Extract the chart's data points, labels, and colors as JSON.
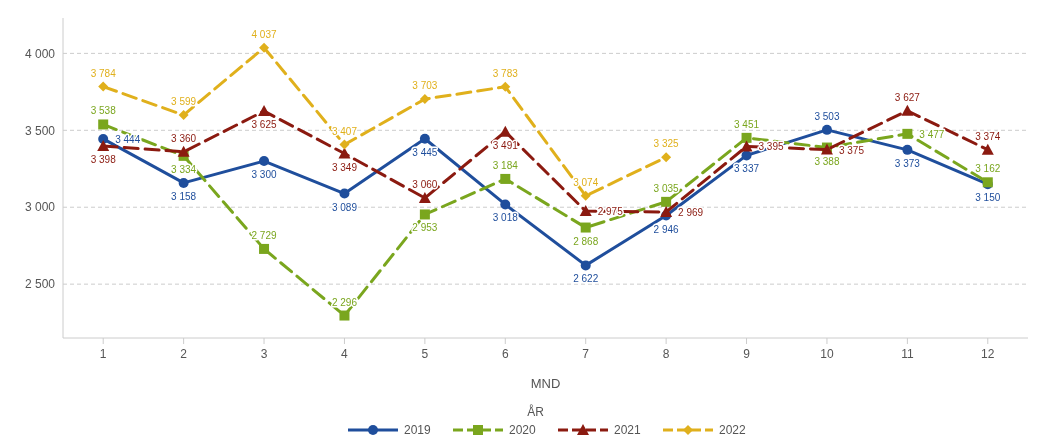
{
  "chart_data": {
    "type": "line",
    "xlabel": "MND",
    "legend_title": "ÅR",
    "categories": [
      "1",
      "2",
      "3",
      "4",
      "5",
      "6",
      "7",
      "8",
      "9",
      "10",
      "11",
      "12"
    ],
    "series": [
      {
        "name": "2019",
        "color": "#1f4e9c",
        "marker": "circle",
        "line_style": "solid",
        "values": [
          3444,
          3158,
          3300,
          3089,
          3445,
          3018,
          2622,
          2946,
          3337,
          3503,
          3373,
          3150
        ]
      },
      {
        "name": "2020",
        "color": "#7aa61e",
        "marker": "square",
        "line_style": "dashed",
        "values": [
          3538,
          3334,
          2729,
          2296,
          2953,
          3184,
          2868,
          3035,
          3451,
          3388,
          3477,
          3162
        ]
      },
      {
        "name": "2021",
        "color": "#8b1a10",
        "marker": "triangle",
        "line_style": "dashed",
        "values": [
          3398,
          3360,
          3625,
          3349,
          3060,
          3491,
          2975,
          2969,
          3395,
          3375,
          3627,
          3374
        ]
      },
      {
        "name": "2022",
        "color": "#e0b01c",
        "marker": "diamond",
        "line_style": "dashed",
        "values": [
          3784,
          3599,
          4037,
          3407,
          3703,
          3783,
          3074,
          3325,
          null,
          null,
          null,
          null
        ]
      }
    ],
    "ylim": [
      2150,
      4230
    ],
    "yticks": [
      {
        "value": 2500,
        "label": "2 500"
      },
      {
        "value": 3000,
        "label": "3 000"
      },
      {
        "value": 3500,
        "label": "3 500"
      },
      {
        "value": 4000,
        "label": "4 000"
      }
    ],
    "grid": "y",
    "legend": "bottom",
    "data_labels": true
  }
}
